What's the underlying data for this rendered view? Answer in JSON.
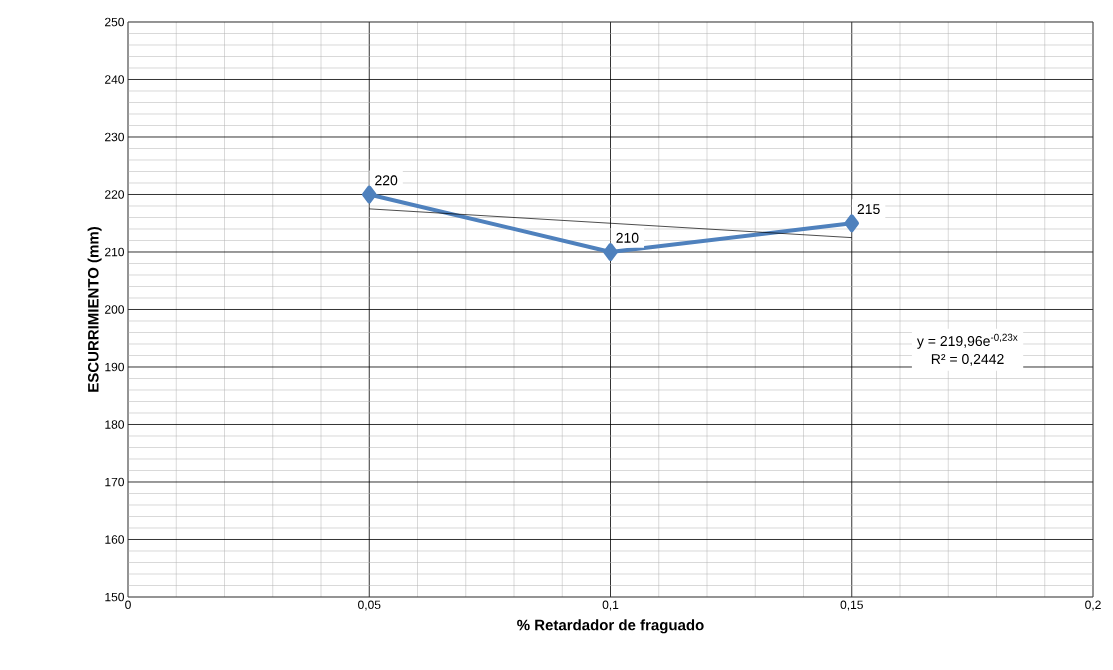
{
  "chart_data": {
    "type": "line",
    "xlabel": "% Retardador de fraguado",
    "ylabel": "ESCURRIMIENTO (mm)",
    "xlim": [
      0,
      0.2
    ],
    "xticks": [
      0,
      {
        "value": 0.05,
        "label": "0,05"
      },
      {
        "value": 0.1,
        "label": "0,1"
      },
      {
        "value": 0.15,
        "label": "0,15"
      },
      {
        "value": 0.2,
        "label": "0,2"
      }
    ],
    "ylim": [
      150,
      250
    ],
    "yticks": [
      150,
      160,
      170,
      180,
      190,
      200,
      210,
      220,
      230,
      240,
      250
    ],
    "grid": true,
    "marker": "diamond",
    "line_style": "solid",
    "series": [
      {
        "x": [
          0.05,
          0.1,
          0.15
        ],
        "values": [
          220,
          210,
          215
        ],
        "color": "#4f81bd",
        "value_labels": [
          "220",
          "210",
          "215"
        ]
      },
      {
        "type": "line",
        "x": [
          0.05,
          0.15
        ],
        "values": [
          217.5,
          212.5
        ],
        "color": "#000000",
        "marker": "none"
      }
    ],
    "annotations": [
      "y = 219,96e$^{-0,23x}$",
      "R² = 0,2442"
    ]
  }
}
